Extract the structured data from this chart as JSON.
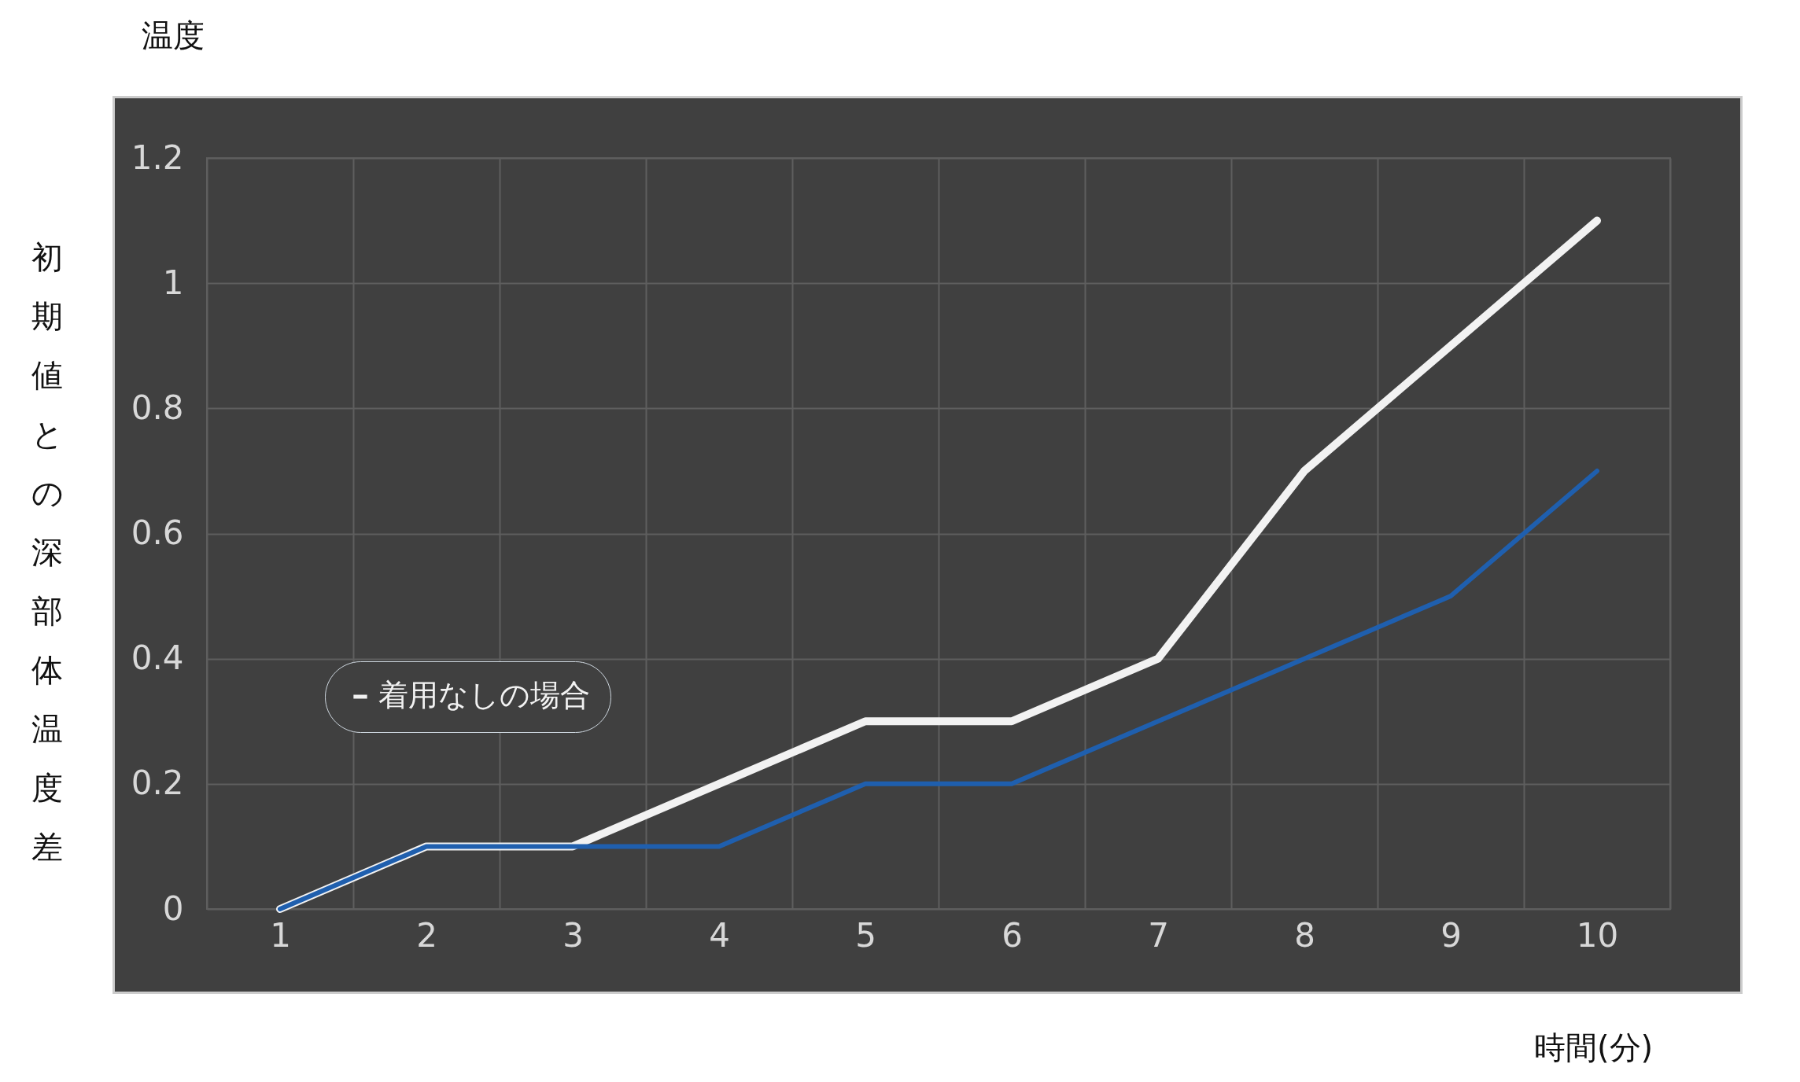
{
  "chart_data": {
    "type": "line",
    "title": "温度",
    "ylabel": "初期値との深部体温度差",
    "xlabel": "時間(分)",
    "categories": [
      "1",
      "2",
      "3",
      "4",
      "5",
      "6",
      "7",
      "8",
      "9",
      "10"
    ],
    "series": [
      {
        "name": "着用なしの場合",
        "color": "#f2f2f2",
        "values": [
          0,
          0.1,
          0.1,
          0.2,
          0.3,
          0.3,
          0.4,
          0.7,
          0.9,
          1.1
        ]
      },
      {
        "color": "#1f5fae",
        "values": [
          0,
          0.1,
          0.1,
          0.1,
          0.2,
          0.2,
          0.3,
          0.4,
          0.5,
          0.7
        ]
      }
    ],
    "ylim": [
      0,
      1.2
    ],
    "yticks": [
      0,
      0.2,
      0.4,
      0.6,
      0.8,
      1,
      1.2
    ],
    "grid": true,
    "legend": "bottom left",
    "marker": "none",
    "line_style": "solid"
  }
}
